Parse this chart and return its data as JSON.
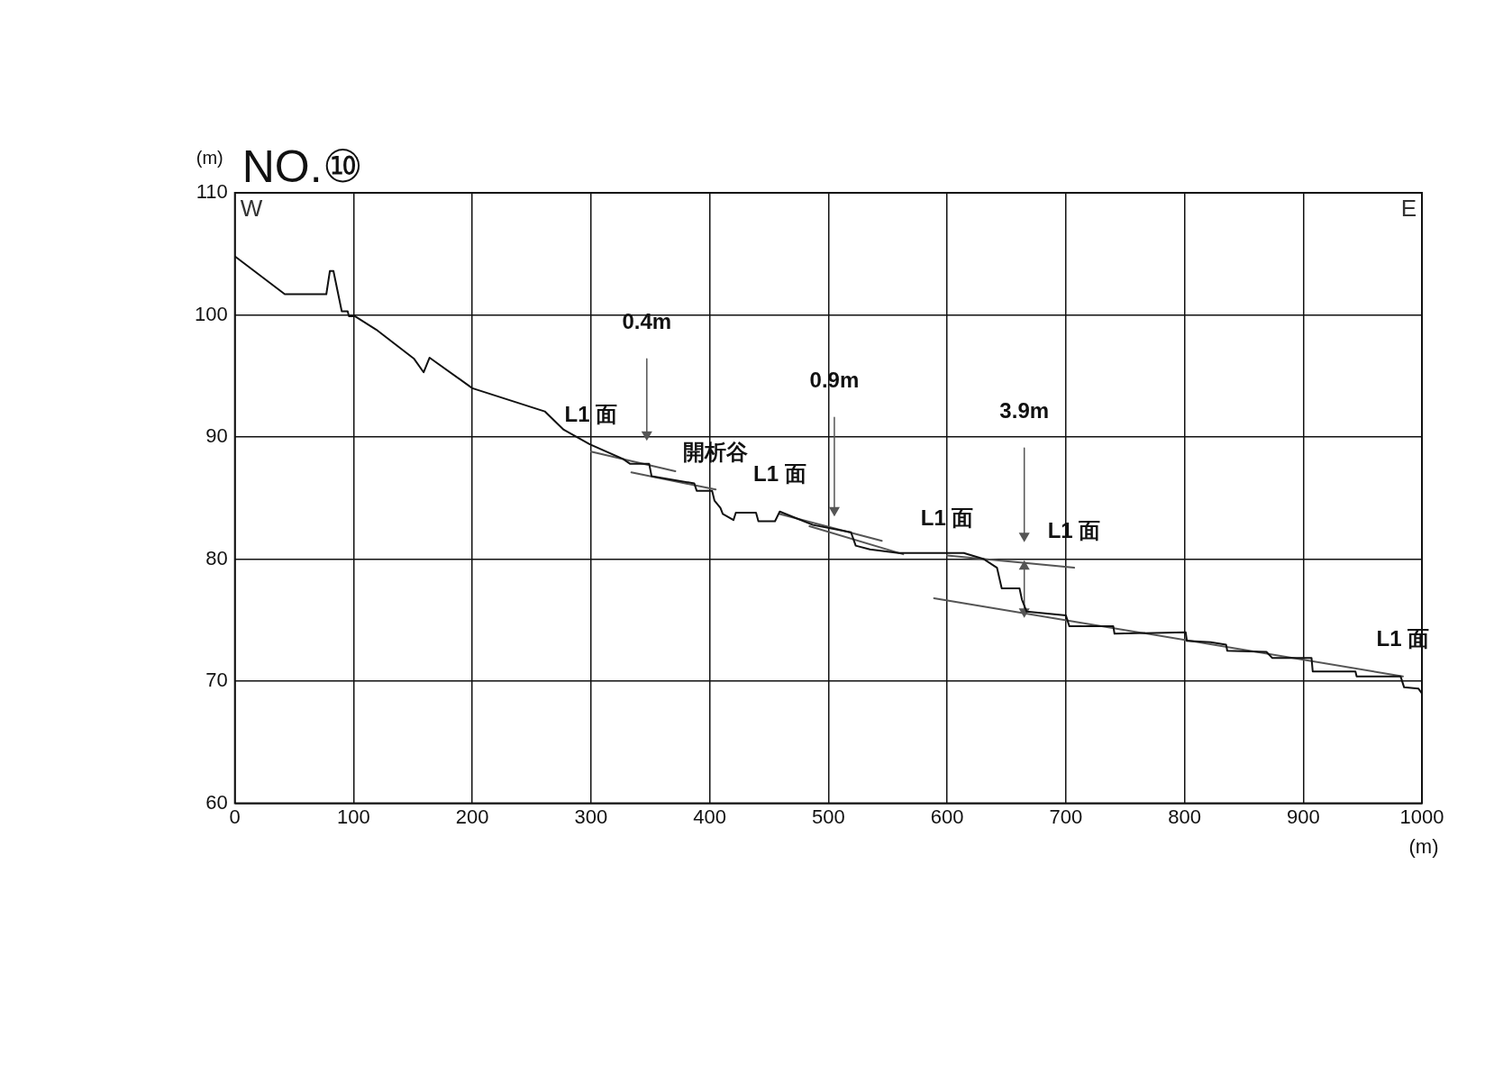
{
  "chart_data": {
    "type": "line",
    "title": "NO.⑩",
    "xlabel": "(m)",
    "ylabel": "(m)",
    "xlim": [
      0,
      1000
    ],
    "xticks": [
      0,
      100,
      200,
      300,
      400,
      500,
      600,
      700,
      800,
      900,
      1000
    ],
    "ylim": [
      60,
      110
    ],
    "yticks": [
      60,
      70,
      80,
      90,
      100,
      110
    ],
    "grid": true,
    "legend": false,
    "marker": "none",
    "line_style": "solid",
    "series": [
      {
        "color": "#111111",
        "x": [
          0,
          42,
          77,
          80,
          83,
          90,
          95,
          96,
          101,
          119,
          151,
          159,
          164,
          200,
          261,
          277,
          299,
          327,
          333,
          349,
          351,
          387,
          389,
          402,
          404,
          409,
          411,
          420,
          422,
          439,
          441,
          455,
          459,
          487,
          519,
          523,
          535,
          559,
          614,
          631,
          642,
          646,
          661,
          663,
          667,
          700,
          703,
          740,
          741,
          801,
          802,
          822,
          835,
          836,
          869,
          874,
          907,
          908,
          944,
          945,
          982,
          985,
          997,
          1000
        ],
        "values": [
          104.8,
          101.7,
          101.7,
          103.6,
          103.6,
          100.3,
          100.3,
          99.9,
          99.9,
          98.8,
          96.4,
          95.3,
          96.5,
          94.0,
          92.1,
          90.6,
          89.4,
          88.2,
          87.8,
          87.8,
          86.8,
          86.2,
          85.6,
          85.6,
          84.8,
          84.2,
          83.7,
          83.2,
          83.8,
          83.8,
          83.1,
          83.1,
          83.9,
          82.8,
          82.2,
          81.1,
          80.8,
          80.5,
          80.5,
          80.0,
          79.3,
          77.6,
          77.6,
          76.7,
          75.7,
          75.4,
          74.5,
          74.5,
          73.9,
          74.0,
          73.3,
          73.2,
          73.0,
          72.5,
          72.4,
          71.9,
          71.9,
          70.8,
          70.8,
          70.4,
          70.4,
          69.5,
          69.4,
          69.0
        ]
      },
      {
        "color": "#555555",
        "x": [
          300,
          371
        ],
        "values": [
          88.8,
          87.2
        ]
      },
      {
        "color": "#555555",
        "x": [
          334,
          405
        ],
        "values": [
          87.1,
          85.7
        ]
      },
      {
        "color": "#555555",
        "x": [
          459,
          545
        ],
        "values": [
          83.7,
          81.5
        ]
      },
      {
        "color": "#555555",
        "x": [
          484,
          563
        ],
        "values": [
          82.7,
          80.4
        ]
      },
      {
        "color": "#555555",
        "x": [
          600,
          707
        ],
        "values": [
          80.3,
          79.3
        ]
      },
      {
        "color": "#555555",
        "x": [
          589,
          984
        ],
        "values": [
          76.8,
          70.4
        ]
      },
      {
        "color": "#555555",
        "x": [
          347,
          347
        ],
        "values": [
          96.4,
          90.2
        ],
        "marker": "triangle"
      },
      {
        "color": "#555555",
        "x": [
          505,
          505
        ],
        "values": [
          91.6,
          84.0
        ],
        "marker": "triangle"
      },
      {
        "color": "#555555",
        "x": [
          665,
          665
        ],
        "values": [
          89.1,
          81.9
        ],
        "marker": "triangle"
      },
      {
        "color": "#555555",
        "x": [
          665,
          665,
          665
        ],
        "values": [
          79.4,
          77.5,
          75.7
        ],
        "marker": "triangle"
      }
    ],
    "annotations": [
      "W",
      "E",
      {
        "text": "L1 面",
        "x": 300,
        "y": 88.8
      },
      {
        "text": "0.4m",
        "x": 347,
        "y": 96.4
      },
      {
        "text": "開析谷",
        "x": 405,
        "y": 85.7
      },
      {
        "text": "0.9m",
        "x": 505,
        "y": 91.6
      },
      {
        "text": "L1 面",
        "x": 459,
        "y": 83.9
      },
      {
        "text": "L1 面",
        "x": 600,
        "y": 80.3
      },
      {
        "text": "3.9m",
        "x": 665,
        "y": 89.1
      },
      {
        "text": "L1 面",
        "x": 707,
        "y": 79.3
      },
      {
        "text": "L1 面",
        "x": 984,
        "y": 70.4
      }
    ]
  }
}
